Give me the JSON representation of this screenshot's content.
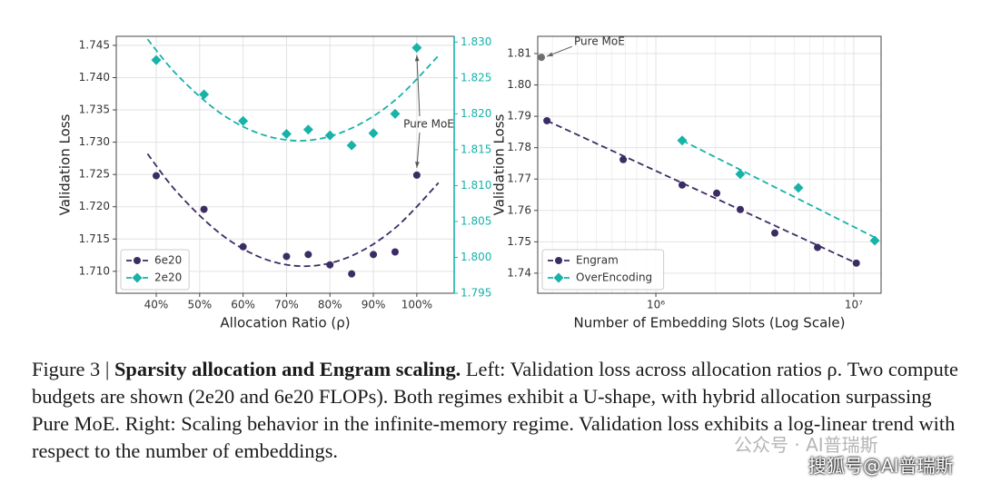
{
  "chart_data": [
    {
      "type": "line",
      "xlabel": "Allocation Ratio (ρ)",
      "ylabel": "Validation Loss",
      "xlim": [
        30.8,
        108.6
      ],
      "xticks": [
        {
          "value": 40,
          "label": "40%"
        },
        {
          "value": 50,
          "label": "50%"
        },
        {
          "value": 60,
          "label": "60%"
        },
        {
          "value": 70,
          "label": "70%"
        },
        {
          "value": 80,
          "label": "80%"
        },
        {
          "value": 90,
          "label": "90%"
        },
        {
          "value": 100,
          "label": "100%"
        }
      ],
      "ylim": [
        1.7066,
        1.7464
      ],
      "yticks": [
        {
          "value": 1.71,
          "label": "1.710"
        },
        1.715,
        {
          "value": 1.72,
          "label": "1.720"
        },
        1.725,
        {
          "value": 1.73,
          "label": "1.730"
        },
        1.735,
        {
          "value": 1.74,
          "label": "1.740"
        },
        1.745
      ],
      "y2lim": [
        1.795,
        1.8308
      ],
      "y2ticks": [
        1.795,
        {
          "value": 1.8,
          "label": "1.800"
        },
        1.805,
        {
          "value": 1.81,
          "label": "1.810"
        },
        1.815,
        {
          "value": 1.82,
          "label": "1.820"
        },
        1.825,
        {
          "value": 1.83,
          "label": "1.830"
        }
      ],
      "y2color": "#17b2a8",
      "grid": true,
      "legend": "lower left",
      "series": [
        {
          "name": "6e20",
          "color": "#3b2d63",
          "marker": "circle",
          "x": [
            40,
            51,
            60,
            70,
            75,
            80,
            85,
            90,
            95,
            100
          ],
          "values": [
            1.7248,
            1.7196,
            1.7138,
            1.7123,
            1.7126,
            1.711,
            1.7096,
            1.7126,
            1.713,
            1.7249
          ],
          "fit": {
            "x": [
              38,
              45,
              55,
              65,
              75,
              85,
              95,
              105
            ],
            "values": [
              1.7282,
              1.7221,
              1.7157,
              1.7119,
              1.7108,
              1.7124,
              1.7167,
              1.7237
            ]
          }
        },
        {
          "name": "2e20",
          "color": "#17b2a8",
          "marker": "diamond",
          "axis": "y2",
          "x": [
            40,
            51,
            60,
            70,
            75,
            80,
            85,
            90,
            95,
            100
          ],
          "values": [
            1.8275,
            1.8227,
            1.819,
            1.8172,
            1.8178,
            1.817,
            1.8156,
            1.8173,
            1.82,
            1.8292
          ],
          "fit": {
            "x": [
              38,
              45,
              55,
              65,
              75,
              85,
              95,
              105
            ],
            "values": [
              1.8304,
              1.8253,
              1.82,
              1.817,
              1.8163,
              1.818,
              1.8219,
              1.8281
            ]
          }
        }
      ],
      "annotations": [
        {
          "text": "Pure MoE"
        }
      ]
    },
    {
      "type": "line",
      "xscale": "log",
      "xlabel": "Number of Embedding Slots (Log Scale)",
      "ylabel": "Validation Loss",
      "xlim": [
        253000,
        13740000
      ],
      "xticks": [
        {
          "value": 1000000,
          "label": "10⁶"
        },
        {
          "value": 10000000,
          "label": "10⁷"
        }
      ],
      "ylim": [
        1.7336,
        1.8155
      ],
      "yticks": [
        1.74,
        1.75,
        1.76,
        1.77,
        1.78,
        1.79,
        {
          "value": 1.8,
          "label": "1.80"
        },
        1.81
      ],
      "grid": true,
      "legend": "lower left",
      "series": [
        {
          "name": "Engram",
          "color": "#3b2d63",
          "marker": "circle",
          "x": [
            281500,
            684000,
            1358000,
            2030000,
            2670000,
            3990000,
            6560000,
            10300000
          ],
          "values": [
            1.7886,
            1.7762,
            1.7681,
            1.7655,
            1.7603,
            1.7528,
            1.7482,
            1.7432
          ],
          "fit": {
            "x": [
              281500,
              10300000
            ],
            "values": [
              1.7886,
              1.7432
            ]
          }
        },
        {
          "name": "OverEncoding",
          "color": "#17b2a8",
          "marker": "diamond",
          "x": [
            1358000,
            2670000,
            5250000,
            12770000
          ],
          "values": [
            1.7823,
            1.7716,
            1.7672,
            1.7504
          ],
          "fit": {
            "x": [
              1358000,
              12770000
            ],
            "values": [
              1.7823,
              1.7514
            ]
          }
        }
      ],
      "points": [
        {
          "label": "Pure MoE",
          "x": 264000,
          "value": 1.8088,
          "color": "#6e6e6e"
        }
      ]
    }
  ],
  "caption": {
    "label": "Figure 3 |",
    "bold": "Sparsity allocation and Engram scaling.",
    "text": "Left: Validation loss across allocation ratios ρ. Two compute budgets are shown (2e20 and 6e20 FLOPs). Both regimes exhibit a U-shape, with hybrid allocation surpassing Pure MoE. Right: Scaling behavior in the infinite-memory regime. Validation loss exhibits a log-linear trend with respect to the number of embeddings."
  },
  "watermarks": [
    "公众号 · AI普瑞斯",
    "搜狐号@AI普瑞斯"
  ]
}
